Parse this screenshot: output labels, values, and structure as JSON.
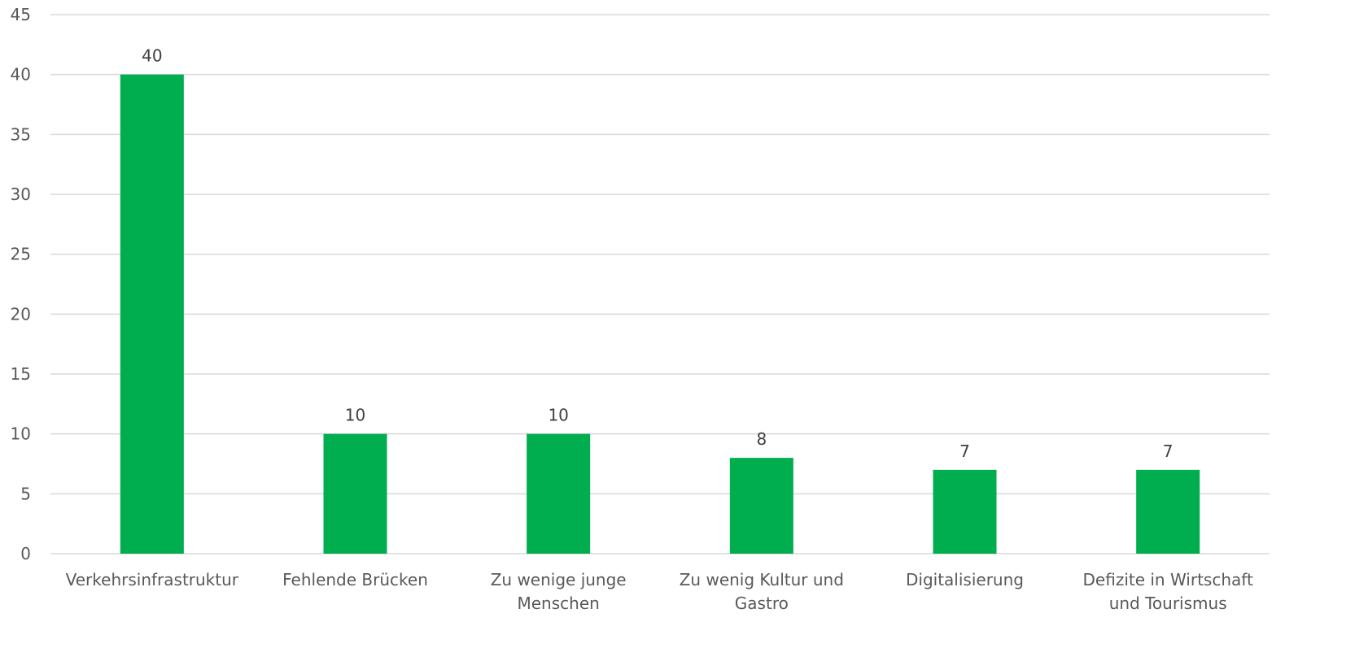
{
  "chart_data": {
    "type": "bar",
    "categories": [
      [
        "Verkehrsinfrastruktur"
      ],
      [
        "Fehlende Brücken"
      ],
      [
        "Zu wenige junge",
        "Menschen"
      ],
      [
        "Zu wenig Kultur und",
        "Gastro"
      ],
      [
        "Digitalisierung"
      ],
      [
        "Defizite in Wirtschaft",
        "und Tourismus"
      ]
    ],
    "values": [
      40,
      10,
      10,
      8,
      7,
      7
    ],
    "data_labels": [
      "40",
      "10",
      "10",
      "8",
      "7",
      "7"
    ],
    "ylim": [
      0,
      45
    ],
    "yticks": [
      0,
      5,
      10,
      15,
      20,
      25,
      30,
      35,
      40,
      45
    ],
    "grid": true,
    "legend": "none",
    "title": "",
    "xlabel": "",
    "ylabel": "",
    "bar_color": "#00AD4F"
  }
}
